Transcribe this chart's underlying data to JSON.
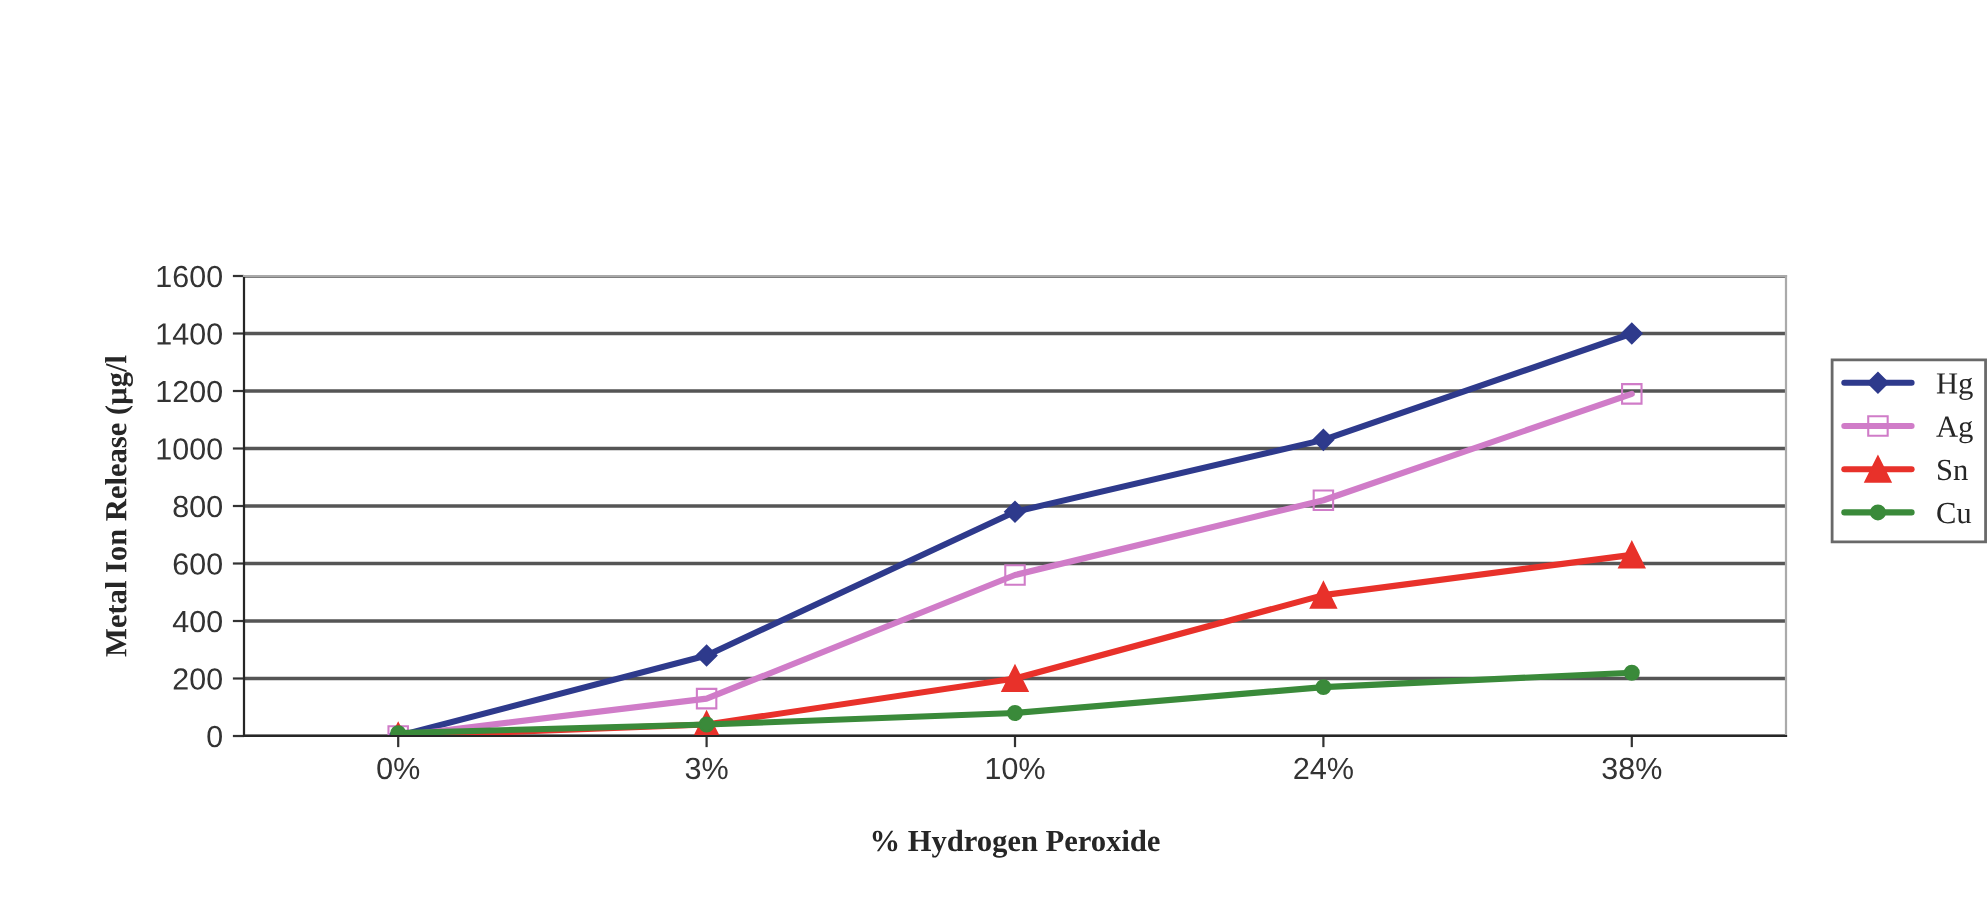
{
  "chart_data": {
    "type": "line",
    "xlabel": "% Hydrogen Peroxide",
    "ylabel": "Metal Ion Release (µg/l",
    "categories": [
      "0%",
      "3%",
      "10%",
      "24%",
      "38%"
    ],
    "series": [
      {
        "name": "Hg",
        "color": "#2e3a8c",
        "marker": "diamond",
        "values": [
          0,
          280,
          780,
          1030,
          1400
        ]
      },
      {
        "name": "Ag",
        "color": "#d07cc8",
        "marker": "square",
        "values": [
          0,
          130,
          560,
          820,
          1190
        ]
      },
      {
        "name": "Sn",
        "color": "#e8312a",
        "marker": "triangle",
        "values": [
          0,
          40,
          200,
          490,
          630
        ]
      },
      {
        "name": "Cu",
        "color": "#3a8a3a",
        "marker": "circle",
        "values": [
          10,
          40,
          80,
          170,
          220
        ]
      }
    ],
    "ylim": [
      0,
      1600
    ],
    "yticks": [
      0,
      200,
      400,
      600,
      800,
      1000,
      1200,
      1400,
      1600
    ],
    "grid": "y",
    "legend": "right",
    "line_style": "solid"
  }
}
